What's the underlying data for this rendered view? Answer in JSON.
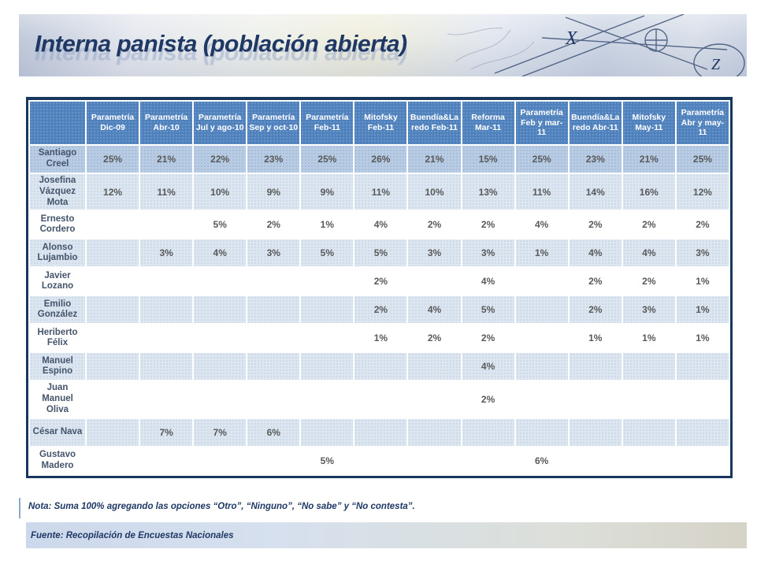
{
  "slide": {
    "title": "Interna panista (población abierta)",
    "note": "Nota: Suma 100% agregando las opciones “Otro”, “Ninguno”, “No sabe” y “No contesta”.",
    "source": "Fuente: Recopilación de Encuestas Nacionales"
  },
  "colors": {
    "header_fill": "#4f81bd",
    "table_border": "#17375e",
    "band_strong": "#b8cce4",
    "band_light": "#dce6f1",
    "band_white": "#ffffff",
    "title_text": "#1f3864",
    "header_text": "#ffffff",
    "value_text": "#595959",
    "name_text": "#44546a"
  },
  "chart_data": {
    "type": "table",
    "title": "Interna panista (población abierta)",
    "columns": [
      "Parametría Dic-09",
      "Parametría Abr-10",
      "Parametría Jul y ago-10",
      "Parametría Sep y oct-10",
      "Parametría Feb-11",
      "Mitofsky Feb-11",
      "Buendía&Laredo Feb-11",
      "Reforma Mar-11",
      "Parametría Feb y mar-11",
      "Buendía&Laredo Abr-11",
      "Mitofsky May-11",
      "Parametría Abr y may-11"
    ],
    "rows": [
      {
        "name": "Santiago Creel",
        "band": "strong",
        "values": [
          "25%",
          "21%",
          "22%",
          "23%",
          "25%",
          "26%",
          "21%",
          "15%",
          "25%",
          "23%",
          "21%",
          "25%"
        ]
      },
      {
        "name": "Josefina Vázquez Mota",
        "band": "light",
        "values": [
          "12%",
          "11%",
          "10%",
          "9%",
          "9%",
          "11%",
          "10%",
          "13%",
          "11%",
          "14%",
          "16%",
          "12%"
        ]
      },
      {
        "name": "Ernesto Cordero",
        "band": "white",
        "values": [
          "",
          "",
          "5%",
          "2%",
          "1%",
          "4%",
          "2%",
          "2%",
          "4%",
          "2%",
          "2%",
          "2%"
        ]
      },
      {
        "name": "Alonso Lujambio",
        "band": "light",
        "values": [
          "",
          "3%",
          "4%",
          "3%",
          "5%",
          "5%",
          "3%",
          "3%",
          "1%",
          "4%",
          "4%",
          "3%"
        ]
      },
      {
        "name": "Javier Lozano",
        "band": "white",
        "values": [
          "",
          "",
          "",
          "",
          "",
          "2%",
          "",
          "4%",
          "",
          "2%",
          "2%",
          "1%"
        ]
      },
      {
        "name": "Emilio González",
        "band": "light",
        "values": [
          "",
          "",
          "",
          "",
          "",
          "2%",
          "4%",
          "5%",
          "",
          "2%",
          "3%",
          "1%"
        ]
      },
      {
        "name": "Heriberto Félix",
        "band": "white",
        "values": [
          "",
          "",
          "",
          "",
          "",
          "1%",
          "2%",
          "2%",
          "",
          "1%",
          "1%",
          "1%"
        ]
      },
      {
        "name": "Manuel Espino",
        "band": "light",
        "values": [
          "",
          "",
          "",
          "",
          "",
          "",
          "",
          "4%",
          "",
          "",
          "",
          ""
        ]
      },
      {
        "name": "Juan Manuel Oliva",
        "band": "white",
        "values": [
          "",
          "",
          "",
          "",
          "",
          "",
          "",
          "2%",
          "",
          "",
          "",
          ""
        ]
      },
      {
        "name": "César Nava",
        "band": "light",
        "values": [
          "",
          "7%",
          "7%",
          "6%",
          "",
          "",
          "",
          "",
          "",
          "",
          "",
          ""
        ]
      },
      {
        "name": "Gustavo Madero",
        "band": "white",
        "values": [
          "",
          "",
          "",
          "",
          "5%",
          "",
          "",
          "",
          "6%",
          "",
          "",
          ""
        ]
      }
    ]
  }
}
